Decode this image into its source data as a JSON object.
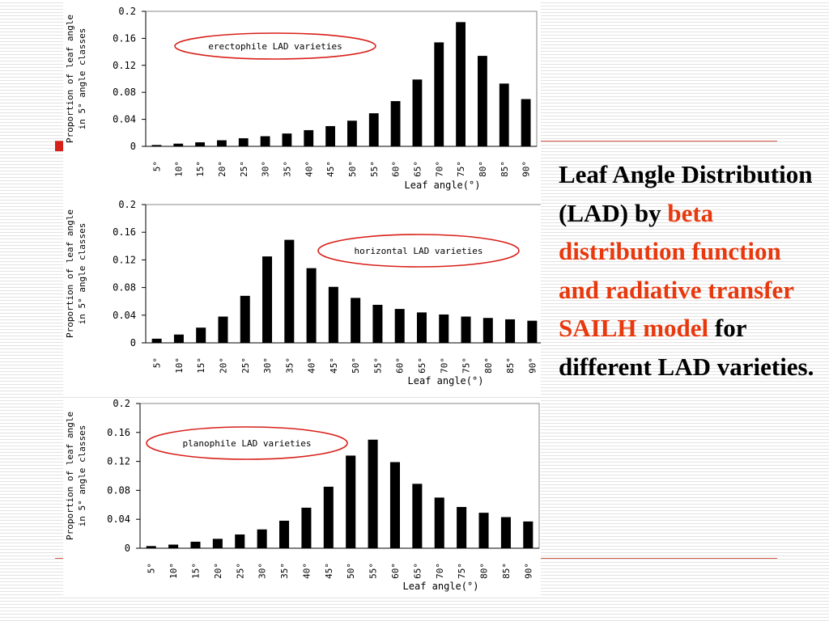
{
  "slide": {
    "title": {
      "part1": "Leaf Angle Distribution (LAD) by",
      "highlight": "beta distribution function and radiative transfer SAILH model",
      "part2": "for different LAD varieties."
    },
    "colors": {
      "accent": "#e8380d",
      "ellipse": "#d8201a",
      "bars": "#000000"
    }
  },
  "chart_data": [
    {
      "type": "bar",
      "annotation": "erectophile LAD varieties",
      "xlabel": "Leaf angle(°)",
      "ylabel": [
        "Proportion of leaf angle",
        "in 5° angle classes"
      ],
      "categories": [
        "5°",
        "10°",
        "15°",
        "20°",
        "25°",
        "30°",
        "35°",
        "40°",
        "45°",
        "50°",
        "55°",
        "60°",
        "65°",
        "70°",
        "75°",
        "80°",
        "85°",
        "90°"
      ],
      "values": [
        0.002,
        0.004,
        0.006,
        0.009,
        0.012,
        0.015,
        0.019,
        0.024,
        0.03,
        0.038,
        0.049,
        0.067,
        0.099,
        0.154,
        0.184,
        0.134,
        0.093,
        0.07
      ],
      "yticks": [
        "0",
        "0.04",
        "0.08",
        "0.12",
        "0.16",
        "0.2"
      ],
      "ylim": [
        0,
        0.2
      ],
      "grid": false
    },
    {
      "type": "bar",
      "annotation": "horizontal LAD varieties",
      "xlabel": "Leaf angle(°)",
      "ylabel": [
        "Proportion of leaf angle",
        "in 5° angle classes"
      ],
      "categories": [
        "5°",
        "10°",
        "15°",
        "20°",
        "25°",
        "30°",
        "35°",
        "40°",
        "45°",
        "50°",
        "55°",
        "60°",
        "65°",
        "70°",
        "75°",
        "80°",
        "85°",
        "90°"
      ],
      "values": [
        0.006,
        0.012,
        0.022,
        0.038,
        0.068,
        0.125,
        0.149,
        0.108,
        0.081,
        0.065,
        0.055,
        0.049,
        0.044,
        0.041,
        0.038,
        0.036,
        0.034,
        0.032
      ],
      "yticks": [
        "0",
        "0.04",
        "0.08",
        "0.12",
        "0.16",
        "0.2"
      ],
      "ylim": [
        0,
        0.2
      ],
      "grid": false
    },
    {
      "type": "bar",
      "annotation": "planophile LAD varieties",
      "xlabel": "Leaf angle(°)",
      "ylabel": [
        "Proportion of leaf angle",
        "in 5° angle classes"
      ],
      "categories": [
        "5°",
        "10°",
        "15°",
        "20°",
        "25°",
        "30°",
        "35°",
        "40°",
        "45°",
        "50°",
        "55°",
        "60°",
        "65°",
        "70°",
        "75°",
        "80°",
        "85°",
        "90°"
      ],
      "values": [
        0.003,
        0.005,
        0.009,
        0.013,
        0.019,
        0.026,
        0.038,
        0.056,
        0.085,
        0.128,
        0.15,
        0.119,
        0.089,
        0.07,
        0.057,
        0.049,
        0.043,
        0.037
      ],
      "yticks": [
        "0",
        "0.04",
        "0.08",
        "0.12",
        "0.16",
        "0.2"
      ],
      "ylim": [
        0,
        0.2
      ],
      "grid": false
    }
  ]
}
